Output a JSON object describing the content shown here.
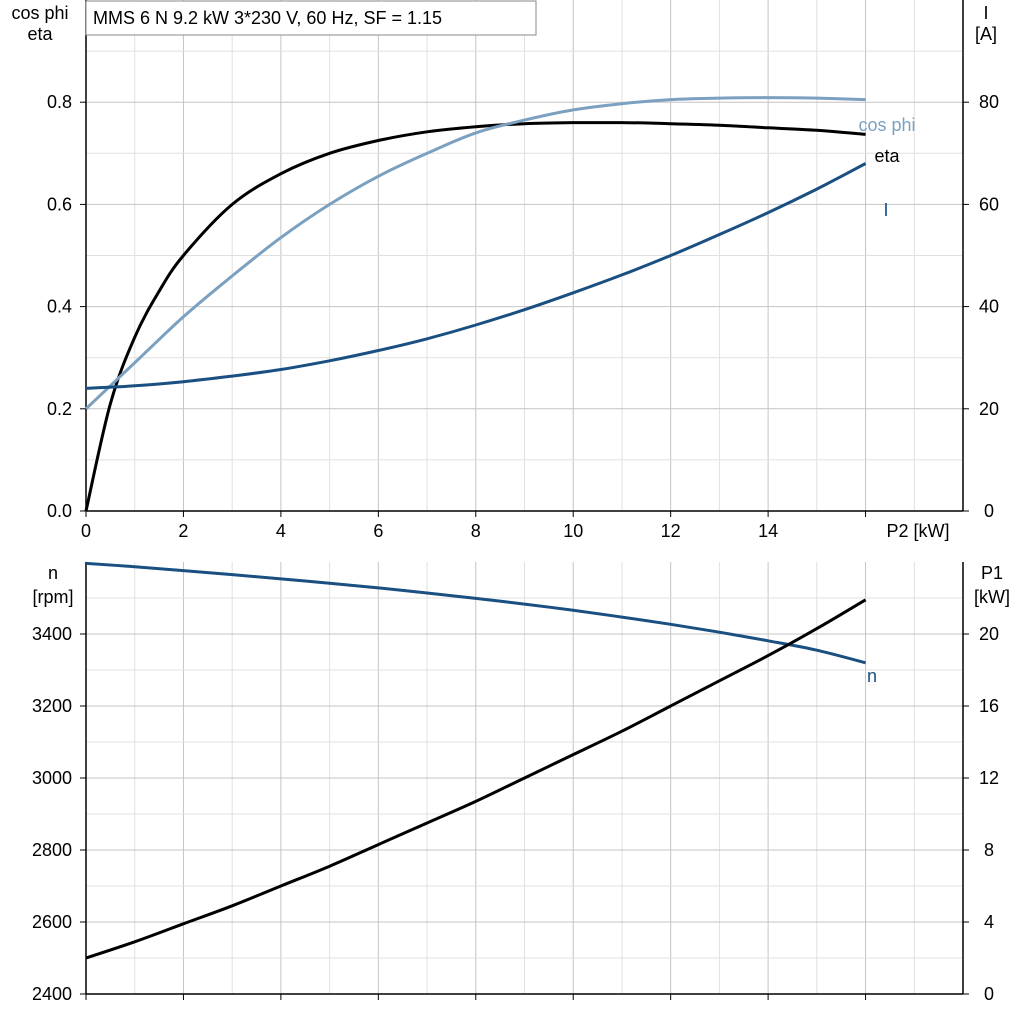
{
  "title": "MMS 6 N   9.2 kW   3*230 V, 60 Hz, SF = 1.15",
  "colors": {
    "eta": "#000000",
    "cos_phi": "#7ba0c0",
    "current": "#1a4f82",
    "speed": "#1a4f82",
    "p1": "#000000",
    "grid": "#cccccc"
  },
  "chart_data": [
    {
      "type": "line",
      "x_label": "P2 [kW]",
      "left_label_1": "cos phi",
      "left_label_2": "eta",
      "right_label_1": "I",
      "right_label_2": "[A]",
      "xlim": [
        0,
        18
      ],
      "ylim_left": [
        0,
        1.0
      ],
      "ylim_right": [
        0,
        100
      ],
      "x_ticks": [
        "0",
        "2",
        "4",
        "6",
        "8",
        "10",
        "12",
        "14"
      ],
      "y_left_ticks": [
        "0.0",
        "0.2",
        "0.4",
        "0.6",
        "0.8"
      ],
      "y_right_ticks": [
        "0",
        "20",
        "40",
        "60",
        "80"
      ],
      "grid": true,
      "series": [
        {
          "name": "eta",
          "axis": "left",
          "x": [
            0,
            0.5,
            1,
            1.5,
            2,
            3,
            4,
            5,
            6,
            7,
            8,
            9,
            10,
            11,
            12,
            13,
            14,
            15,
            16
          ],
          "y": [
            0.0,
            0.21,
            0.34,
            0.43,
            0.5,
            0.6,
            0.66,
            0.7,
            0.725,
            0.742,
            0.752,
            0.758,
            0.76,
            0.76,
            0.758,
            0.755,
            0.75,
            0.745,
            0.737
          ]
        },
        {
          "name": "cos phi",
          "axis": "left",
          "x": [
            0,
            1,
            2,
            3,
            4,
            5,
            6,
            7,
            8,
            9,
            10,
            11,
            12,
            13,
            14,
            15,
            16
          ],
          "y": [
            0.2,
            0.29,
            0.38,
            0.46,
            0.535,
            0.6,
            0.655,
            0.7,
            0.74,
            0.765,
            0.785,
            0.797,
            0.805,
            0.808,
            0.809,
            0.808,
            0.805
          ]
        },
        {
          "name": "I",
          "axis": "right",
          "x": [
            0,
            1,
            2,
            3,
            4,
            5,
            6,
            7,
            8,
            9,
            10,
            11,
            12,
            13,
            14,
            15,
            16
          ],
          "y": [
            24,
            24.5,
            25.3,
            26.4,
            27.7,
            29.4,
            31.4,
            33.7,
            36.4,
            39.4,
            42.7,
            46.2,
            50,
            54.1,
            58.4,
            63,
            68
          ]
        }
      ]
    },
    {
      "type": "line",
      "left_label_1": "n",
      "left_label_2": "[rpm]",
      "right_label_1": "P1",
      "right_label_2": "[kW]",
      "xlim": [
        0,
        18
      ],
      "ylim_left": [
        2400,
        3600
      ],
      "ylim_right": [
        0,
        24
      ],
      "y_left_ticks": [
        "2400",
        "2600",
        "2800",
        "3000",
        "3200",
        "3400"
      ],
      "y_right_ticks": [
        "0",
        "4",
        "8",
        "12",
        "16",
        "20"
      ],
      "grid": true,
      "series": [
        {
          "name": "n",
          "axis": "left",
          "x": [
            0,
            1,
            2,
            3,
            4,
            5,
            6,
            7,
            8,
            9,
            10,
            11,
            12,
            13,
            14,
            15,
            16
          ],
          "y": [
            3596,
            3587,
            3576,
            3565,
            3553,
            3541,
            3528,
            3514,
            3499,
            3483,
            3466,
            3447,
            3427,
            3405,
            3381,
            3355,
            3320
          ]
        },
        {
          "name": "",
          "axis": "right",
          "x": [
            0,
            1,
            2,
            3,
            4,
            5,
            6,
            7,
            8,
            9,
            10,
            11,
            12,
            13,
            14,
            15,
            16
          ],
          "y": [
            2.0,
            2.9,
            3.9,
            4.9,
            6.0,
            7.1,
            8.3,
            9.5,
            10.7,
            12.0,
            13.3,
            14.6,
            16.0,
            17.4,
            18.8,
            20.3,
            21.9
          ]
        }
      ]
    }
  ]
}
